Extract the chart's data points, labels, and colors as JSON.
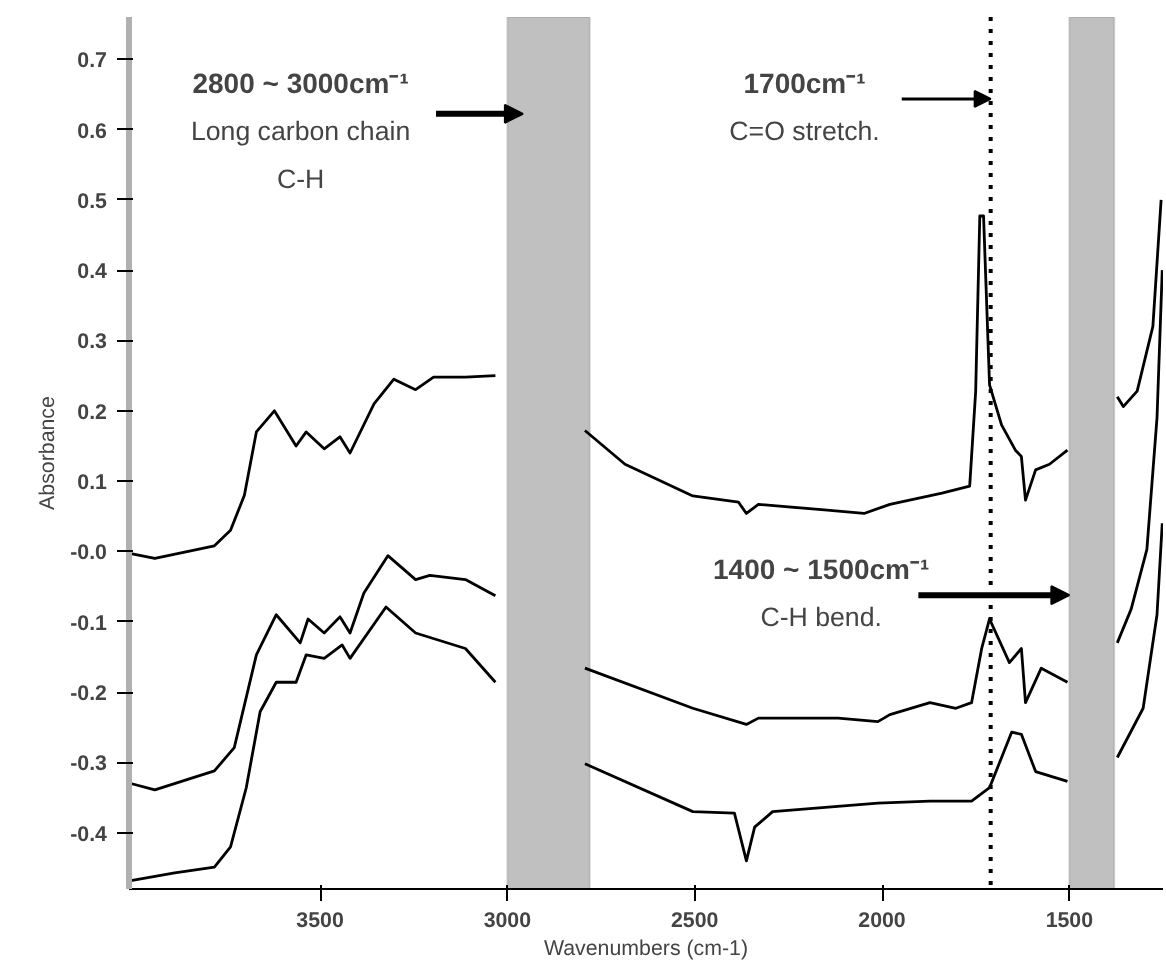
{
  "chart_data": {
    "type": "line",
    "xlabel": "Wavenumbers (cm-1)",
    "ylabel": "Absorbance",
    "xlim": [
      4010,
      1250
    ],
    "ylim": [
      -0.48,
      0.76
    ],
    "xticks": [
      3500,
      3000,
      2500,
      2000,
      1500
    ],
    "yticks": [
      -0.4,
      -0.3,
      -0.2,
      -0.1,
      {
        "value": 0,
        "label": "-0.0"
      },
      0.1,
      0.2,
      0.3,
      0.4,
      0.5,
      0.6,
      0.7
    ],
    "grid": false,
    "marker": "none",
    "line_style": "solid",
    "series": [
      {
        "color": "#000000",
        "x": [
          4005,
          3941,
          3782,
          3739,
          3702,
          3670,
          3622,
          3564,
          3537,
          3489,
          3447,
          3420,
          3356,
          3303,
          3245,
          3197,
          3112,
          3032,
          2900,
          2793,
          2686,
          2505,
          2383,
          2362,
          2330,
          2154,
          2048,
          1979,
          1840,
          1766,
          1750,
          1739,
          1729,
          1713,
          1681,
          1644,
          1628,
          1617,
          1590,
          1553,
          1505,
          1440,
          1372,
          1356,
          1319,
          1277,
          1255
        ],
        "values": [
          -0.003,
          -0.01,
          0.008,
          0.03,
          0.08,
          0.17,
          0.2,
          0.15,
          0.17,
          0.146,
          0.163,
          0.14,
          0.21,
          0.245,
          0.23,
          0.248,
          0.248,
          0.25,
          null,
          0.172,
          0.124,
          0.079,
          0.07,
          0.054,
          0.067,
          0.059,
          0.054,
          0.067,
          0.083,
          0.093,
          0.228,
          0.477,
          0.477,
          0.237,
          0.18,
          0.144,
          0.135,
          0.073,
          0.116,
          0.124,
          0.144,
          null,
          0.22,
          0.206,
          0.228,
          0.32,
          0.5
        ]
      },
      {
        "color": "#000000",
        "x": [
          4005,
          3941,
          3782,
          3729,
          3670,
          3617,
          3553,
          3532,
          3489,
          3447,
          3420,
          3383,
          3319,
          3245,
          3207,
          3112,
          3032,
          2900,
          2793,
          2505,
          2362,
          2330,
          2117,
          2011,
          1979,
          1872,
          1803,
          1761,
          1734,
          1713,
          1660,
          1628,
          1617,
          1575,
          1505,
          1440,
          1372,
          1335,
          1293,
          1266,
          1252
        ],
        "values": [
          -0.33,
          -0.339,
          -0.312,
          -0.279,
          -0.147,
          -0.09,
          -0.13,
          -0.096,
          -0.116,
          -0.093,
          -0.116,
          -0.059,
          -0.006,
          -0.04,
          -0.034,
          -0.04,
          -0.063,
          null,
          -0.166,
          -0.223,
          -0.246,
          -0.237,
          -0.237,
          -0.242,
          -0.232,
          -0.215,
          -0.223,
          -0.215,
          -0.138,
          -0.096,
          -0.158,
          -0.138,
          -0.215,
          -0.166,
          -0.186,
          null,
          -0.13,
          -0.082,
          0.003,
          0.19,
          0.4
        ]
      },
      {
        "color": "#000000",
        "x": [
          4005,
          3888,
          3782,
          3739,
          3697,
          3660,
          3617,
          3564,
          3537,
          3489,
          3441,
          3420,
          3324,
          3245,
          3112,
          3032,
          2900,
          2793,
          2505,
          2394,
          2362,
          2340,
          2292,
          2011,
          1872,
          1761,
          1713,
          1654,
          1628,
          1590,
          1505,
          1440,
          1372,
          1303,
          1266,
          1252
        ],
        "values": [
          -0.468,
          -0.457,
          -0.449,
          -0.42,
          -0.336,
          -0.228,
          -0.186,
          -0.186,
          -0.147,
          -0.152,
          -0.133,
          -0.152,
          -0.079,
          -0.116,
          -0.138,
          -0.186,
          null,
          -0.302,
          -0.37,
          -0.372,
          -0.44,
          -0.392,
          -0.37,
          -0.358,
          -0.355,
          -0.355,
          -0.336,
          -0.257,
          -0.26,
          -0.313,
          -0.327,
          null,
          -0.293,
          -0.223,
          -0.09,
          0.04
        ]
      }
    ],
    "bands": [
      {
        "axis": "x",
        "from": 3000,
        "to": 2780,
        "color": "#c0c0c0",
        "label": "2800 ~ 3000cm⁻¹\nLong carbon chain\nC-H"
      },
      {
        "axis": "x",
        "from": 1500,
        "to": 1380,
        "color": "#c0c0c0",
        "label": "1400 ~ 1500cm⁻¹\nC-H bend."
      }
    ],
    "ref_lines": [
      {
        "axis": "x",
        "value": 1710,
        "color": "#000000",
        "line_style": "dotted",
        "label": "1700cm⁻¹\nC=O stretch."
      }
    ]
  }
}
